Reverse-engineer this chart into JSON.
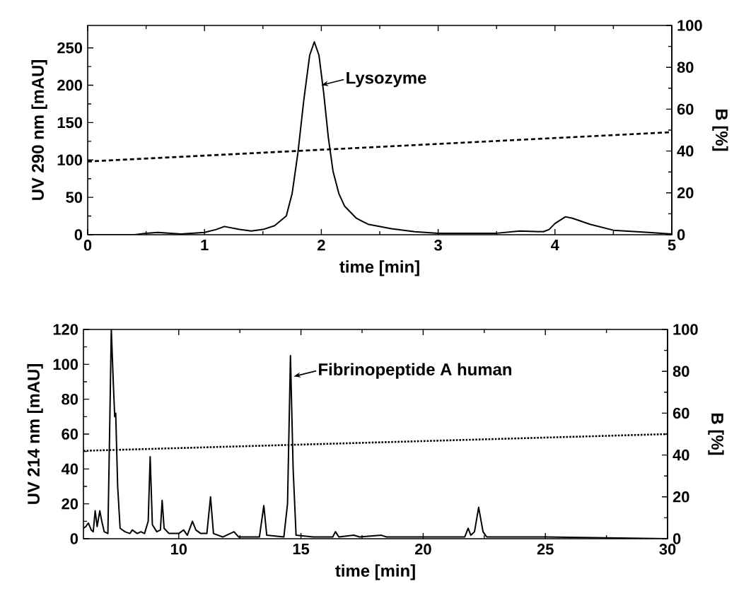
{
  "chart_data": [
    {
      "type": "line",
      "xlabel": "time [min]",
      "ylabel": "UV 290 nm [mAU]",
      "y2label": "B [%]",
      "xlim": [
        0,
        5
      ],
      "xticks": [
        0,
        1,
        2,
        3,
        4,
        5
      ],
      "ylim": [
        0,
        280
      ],
      "yticks": [
        0,
        50,
        100,
        150,
        200,
        250
      ],
      "y2lim": [
        0,
        100
      ],
      "y2ticks": [
        0,
        20,
        40,
        60,
        80,
        100
      ],
      "series": [
        {
          "color": "#000000",
          "line_style": "solid",
          "x": [
            0,
            0.4,
            0.5,
            0.6,
            0.8,
            1.0,
            1.1,
            1.17,
            1.3,
            1.4,
            1.5,
            1.6,
            1.7,
            1.75,
            1.8,
            1.85,
            1.9,
            1.94,
            1.98,
            2.02,
            2.06,
            2.1,
            2.15,
            2.2,
            2.3,
            2.4,
            2.6,
            2.8,
            3.0,
            3.5,
            3.7,
            3.9,
            3.95,
            4.0,
            4.09,
            4.15,
            4.3,
            4.5,
            4.8,
            5.0
          ],
          "values": [
            0,
            0,
            2,
            3,
            1,
            3,
            7,
            11,
            7,
            5,
            7,
            12,
            25,
            55,
            110,
            180,
            240,
            258,
            240,
            190,
            130,
            85,
            55,
            38,
            22,
            14,
            8,
            4,
            2,
            2,
            5,
            4,
            7,
            15,
            24,
            22,
            14,
            6,
            3,
            1
          ]
        },
        {
          "color": "#000000",
          "axis": "y2",
          "line_style": "dashed",
          "x": [
            0,
            5
          ],
          "values": [
            35,
            49
          ]
        }
      ],
      "annotations": [
        {
          "text": "Lysozyme",
          "x": 2.0,
          "y": 200
        }
      ]
    },
    {
      "type": "line",
      "xlabel": "time [min]",
      "ylabel": "UV 214 nm [mAU]",
      "y2label": "B [%]",
      "xlim": [
        6.1,
        30
      ],
      "xticks": [
        10,
        15,
        20,
        25,
        30
      ],
      "ylim": [
        0,
        120
      ],
      "yticks": [
        0,
        20,
        40,
        60,
        80,
        100,
        120
      ],
      "y2lim": [
        0,
        100
      ],
      "y2ticks": [
        0,
        20,
        40,
        60,
        80,
        100
      ],
      "series": [
        {
          "color": "#000000",
          "line_style": "solid",
          "x": [
            6.1,
            6.2,
            6.3,
            6.42,
            6.5,
            6.58,
            6.66,
            6.77,
            6.85,
            6.95,
            7.1,
            7.17,
            7.24,
            7.32,
            7.38,
            7.42,
            7.5,
            7.6,
            7.8,
            8.0,
            8.1,
            8.3,
            8.45,
            8.6,
            8.75,
            8.83,
            8.92,
            9.1,
            9.25,
            9.32,
            9.4,
            9.6,
            10.0,
            10.2,
            10.35,
            10.56,
            10.7,
            10.9,
            11.15,
            11.3,
            11.42,
            11.8,
            12.26,
            12.45,
            13.3,
            13.48,
            13.6,
            14.3,
            14.45,
            14.57,
            14.68,
            14.8,
            15.5,
            16.3,
            16.41,
            16.55,
            17.16,
            17.4,
            18.29,
            18.5,
            21.7,
            21.84,
            21.95,
            22.1,
            22.27,
            22.45,
            22.6,
            25,
            30
          ],
          "values": [
            6,
            7,
            9,
            5,
            4,
            16,
            7,
            16,
            10,
            4,
            3,
            60,
            120,
            90,
            70,
            72,
            30,
            6,
            4,
            3,
            5,
            3,
            4,
            3,
            10,
            47,
            8,
            4,
            5,
            22,
            6,
            3,
            3,
            5,
            2,
            10,
            5,
            3,
            3,
            24,
            3,
            1,
            4,
            1,
            1,
            19,
            2,
            1,
            20,
            105,
            40,
            2,
            1,
            1,
            4,
            1,
            2,
            1,
            2,
            1,
            1,
            6,
            2,
            4,
            18,
            4,
            1,
            1,
            0
          ]
        },
        {
          "color": "#000000",
          "axis": "y2",
          "line_style": "dotted",
          "x": [
            6.1,
            30
          ],
          "values": [
            42,
            50
          ]
        }
      ],
      "annotations": [
        {
          "text": "Fibrinopeptide A human",
          "x": 14.7,
          "y": 93
        }
      ]
    }
  ]
}
